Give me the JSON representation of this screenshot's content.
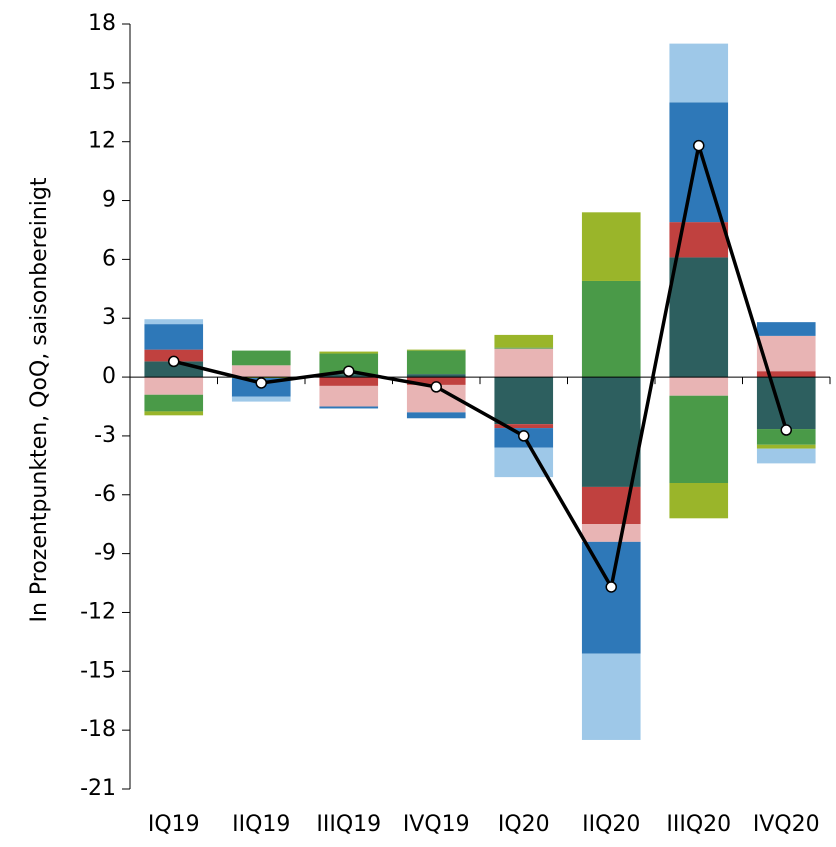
{
  "chart_data": {
    "type": "bar",
    "stacked": true,
    "y_label": "In Prozentpunkten, QoQ, saisonbereinigt",
    "categories": [
      "IQ19",
      "IIQ19",
      "IIIQ19",
      "IVQ19",
      "IQ20",
      "IIQ20",
      "IIIQ20",
      "IVQ20"
    ],
    "ylim": [
      -21,
      18
    ],
    "yticks": [
      -21,
      -18,
      -15,
      -12,
      -9,
      -6,
      -3,
      0,
      3,
      6,
      9,
      12,
      15,
      18
    ],
    "series": [
      {
        "color": "#2d5f5f",
        "values": [
          0.8,
          0,
          0.15,
          0.15,
          -2.4,
          -5.6,
          6.1,
          -2.65
        ]
      },
      {
        "color": "#c0413f",
        "values": [
          0.6,
          0,
          -0.45,
          -0.4,
          -0.2,
          -1.9,
          1.8,
          0.3
        ]
      },
      {
        "color": "#e8b4b4",
        "values": [
          -0.9,
          0.6,
          -1.05,
          -1.4,
          1.45,
          -0.9,
          -0.95,
          1.8
        ]
      },
      {
        "color": "#4a9a48",
        "values": [
          -0.85,
          0.75,
          1.05,
          1.2,
          0.05,
          4.9,
          -4.45,
          -0.8
        ]
      },
      {
        "color": "#9ab52a",
        "values": [
          -0.2,
          -0.05,
          0.1,
          0.05,
          0.65,
          3.5,
          -1.8,
          -0.2
        ]
      },
      {
        "color": "#2e78b8",
        "values": [
          1.3,
          -0.95,
          -0.1,
          -0.3,
          -1.0,
          -5.7,
          6.1,
          0.7
        ]
      },
      {
        "color": "#9ec8e8",
        "values": [
          0.25,
          -0.25,
          0,
          0,
          -1.5,
          -4.4,
          3.0,
          -0.75
        ]
      }
    ],
    "line": {
      "type": "line",
      "color": "#000000",
      "values": [
        0.8,
        -0.3,
        0.3,
        -0.5,
        -3.0,
        -10.7,
        11.8,
        -2.7
      ]
    }
  }
}
